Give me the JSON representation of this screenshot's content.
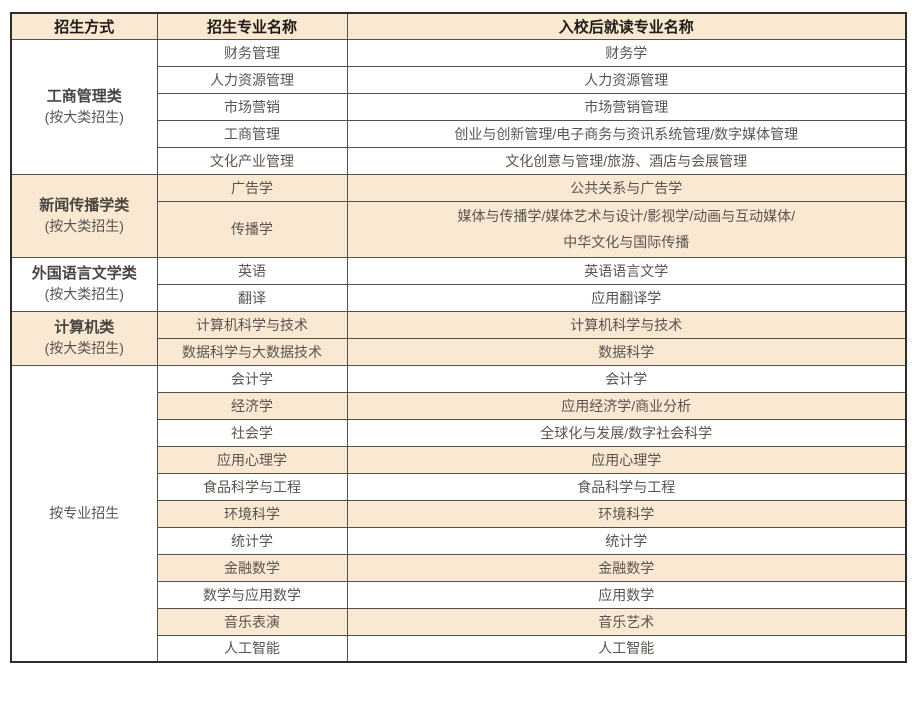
{
  "colors": {
    "peach_bg": "#f9e8d2",
    "white_bg": "#ffffff",
    "text": "#595450",
    "header_text": "#201c18",
    "inner_border": "#55504b",
    "outer_border": "#2f2c29"
  },
  "table": {
    "header": {
      "col1": "招生方式",
      "col2": "招生专业名称",
      "col3": "入校后就读专业名称"
    },
    "groups": [
      {
        "name": "工商管理类",
        "subtitle": "(按大类招生)",
        "rows": [
          {
            "major": "财务管理",
            "target": "财务学"
          },
          {
            "major": "人力资源管理",
            "target": "人力资源管理"
          },
          {
            "major": "市场营销",
            "target": "市场营销管理"
          },
          {
            "major": "工商管理",
            "target": "创业与创新管理/电子商务与资讯系统管理/数字媒体管理"
          },
          {
            "major": "文化产业管理",
            "target": "文化创意与管理/旅游、酒店与会展管理"
          }
        ]
      },
      {
        "name": "新闻传播学类",
        "subtitle": "(按大类招生)",
        "rows": [
          {
            "major": "广告学",
            "target": "公共关系与广告学"
          },
          {
            "major": "传播学",
            "target": "媒体与传播学/媒体艺术与设计/影视学/动画与互动媒体/",
            "target_line2": "中华文化与国际传播"
          }
        ]
      },
      {
        "name": "外国语言文学类",
        "subtitle": "(按大类招生)",
        "rows": [
          {
            "major": "英语",
            "target": "英语语言文学"
          },
          {
            "major": "翻译",
            "target": "应用翻译学"
          }
        ]
      },
      {
        "name": "计算机类",
        "subtitle": "(按大类招生)",
        "rows": [
          {
            "major": "计算机科学与技术",
            "target": "计算机科学与技术"
          },
          {
            "major": "数据科学与大数据技术",
            "target": "数据科学"
          }
        ]
      },
      {
        "name": "按专业招生",
        "subtitle": "",
        "rows": [
          {
            "major": "会计学",
            "target": "会计学"
          },
          {
            "major": "经济学",
            "target": "应用经济学/商业分析"
          },
          {
            "major": "社会学",
            "target": "全球化与发展/数字社会科学"
          },
          {
            "major": "应用心理学",
            "target": "应用心理学"
          },
          {
            "major": "食品科学与工程",
            "target": "食品科学与工程"
          },
          {
            "major": "环境科学",
            "target": "环境科学"
          },
          {
            "major": "统计学",
            "target": "统计学"
          },
          {
            "major": "金融数学",
            "target": "金融数学"
          },
          {
            "major": "数学与应用数学",
            "target": "应用数学"
          },
          {
            "major": "音乐表演",
            "target": "音乐艺术"
          },
          {
            "major": "人工智能",
            "target": "人工智能"
          }
        ]
      }
    ]
  }
}
